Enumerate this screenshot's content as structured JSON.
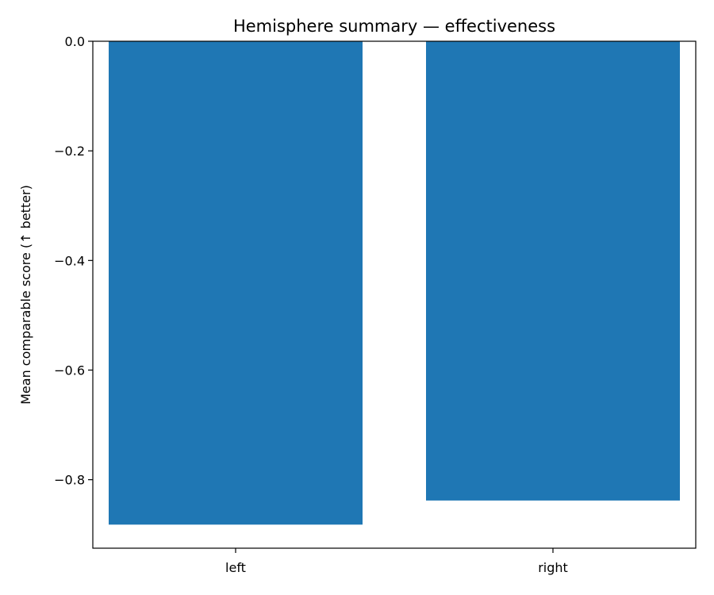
{
  "chart_data": {
    "type": "bar",
    "title": "Hemisphere summary — effectiveness",
    "xlabel": "",
    "ylabel": "Mean comparable score (↑ better)",
    "categories": [
      "left",
      "right"
    ],
    "values": [
      -0.882,
      -0.838
    ],
    "ylim": [
      -0.925,
      0.0
    ],
    "yticks": [
      0.0,
      -0.2,
      -0.4,
      -0.6,
      -0.8
    ],
    "ytick_labels": [
      "0.0",
      "−0.2",
      "−0.4",
      "−0.6",
      "−0.8"
    ],
    "bar_color": "#1f77b4",
    "grid": false,
    "legend": "none"
  }
}
